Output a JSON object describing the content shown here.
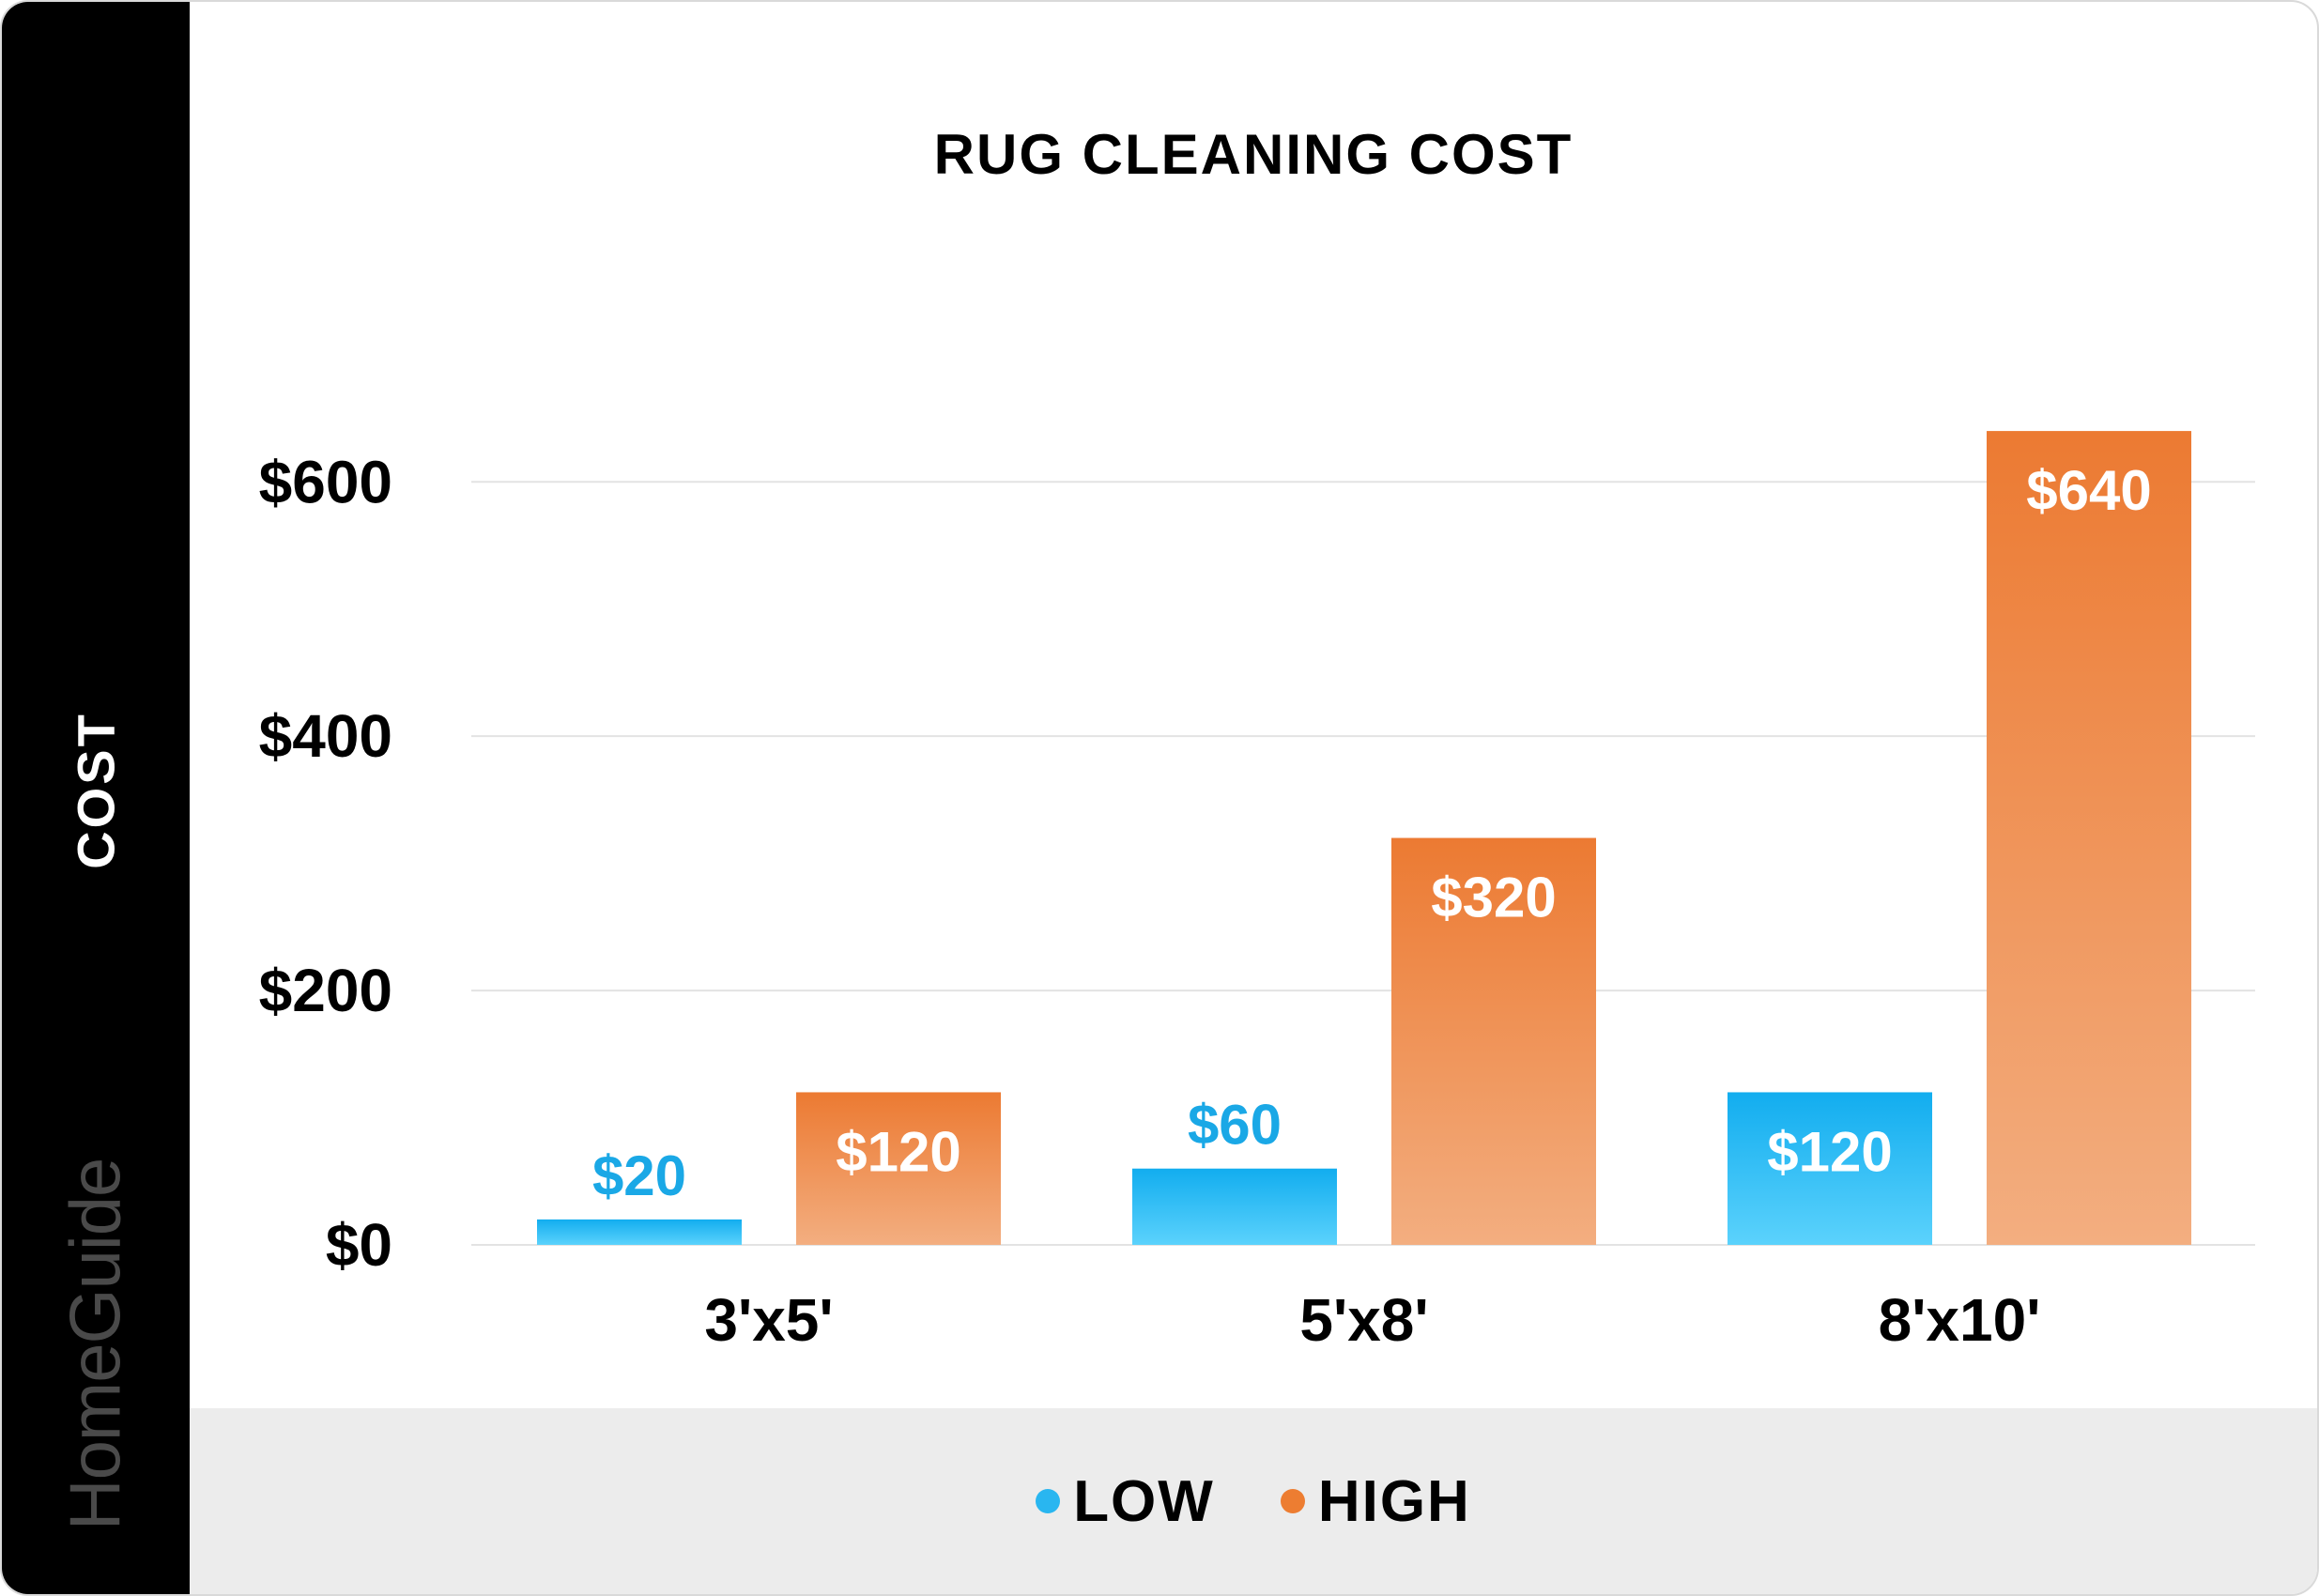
{
  "chart_data": {
    "type": "bar",
    "title": "RUG CLEANING COST",
    "ylabel": "COST",
    "xlabel": "",
    "categories": [
      "3'x5'",
      "5'x8'",
      "8'x10'"
    ],
    "series": [
      {
        "name": "LOW",
        "values": [
          20,
          60,
          120
        ],
        "labels": [
          "$20",
          "$60",
          "$120"
        ],
        "color": "#29b6f0"
      },
      {
        "name": "HIGH",
        "values": [
          120,
          320,
          640
        ],
        "labels": [
          "$120",
          "$320",
          "$640"
        ],
        "color": "#ed7d31"
      }
    ],
    "yticks": [
      0,
      200,
      400,
      600
    ],
    "ytick_labels": [
      "$0",
      "$200",
      "$400",
      "$600"
    ],
    "ylim": [
      0,
      660
    ],
    "grid": true,
    "legend_position": "bottom"
  },
  "brand": "HomeGuide",
  "colors": {
    "low_top": "#12adef",
    "low_bottom": "#5bd2fc",
    "high_top": "#ec7a32",
    "high_bottom": "#f3ae80",
    "low_label_outside": "#1aa8e6",
    "sidebar": "#000000",
    "legend_bg": "#ececec"
  }
}
